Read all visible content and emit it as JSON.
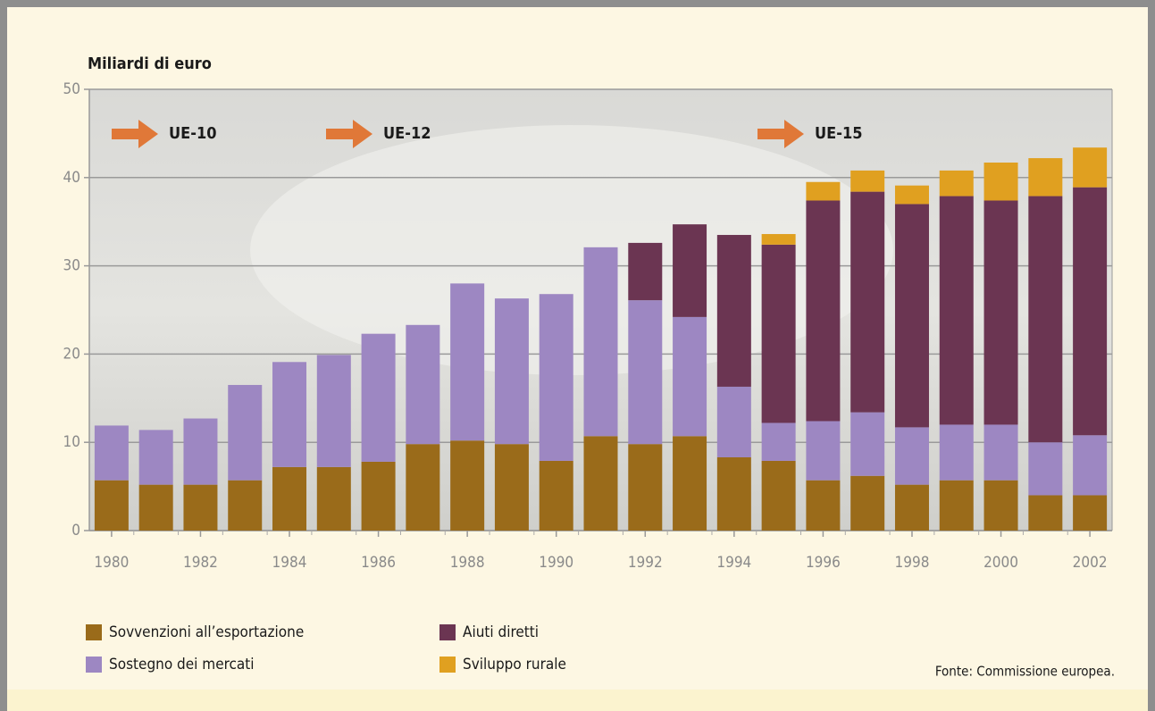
{
  "chart_data": {
    "type": "stacked_bar",
    "y_axis_label": "Miliardi di euro",
    "source": "Fonte: Commissione europea.",
    "annotations": [
      "UE-10",
      "UE-12",
      "UE-15"
    ],
    "x": [
      1980,
      1981,
      1982,
      1983,
      1984,
      1985,
      1986,
      1987,
      1988,
      1989,
      1990,
      1991,
      1992,
      1993,
      1994,
      1995,
      1996,
      1997,
      1998,
      1999,
      2000,
      2001,
      2002
    ],
    "xlim": [
      1979.5,
      2002.5
    ],
    "xticks": [
      1980,
      1982,
      1984,
      1986,
      1988,
      1990,
      1992,
      1994,
      1996,
      1998,
      2000,
      2002
    ],
    "ylim": [
      0,
      50
    ],
    "yticks": [
      0,
      10,
      20,
      30,
      40,
      50
    ],
    "grid": true,
    "series": [
      {
        "name": "Sovvenzioni all’esportazione",
        "color": "#9a6b1a",
        "values": [
          5.7,
          5.2,
          5.2,
          5.7,
          7.2,
          7.2,
          7.8,
          9.8,
          10.2,
          9.8,
          7.9,
          10.7,
          9.8,
          10.7,
          8.3,
          7.9,
          5.7,
          6.2,
          5.2,
          5.7,
          5.7,
          4.0,
          4.0
        ]
      },
      {
        "name": "Sostegno dei mercati",
        "color": "#9d87c2",
        "values": [
          6.2,
          6.2,
          7.5,
          10.8,
          11.9,
          12.7,
          14.5,
          13.5,
          17.8,
          16.5,
          18.9,
          21.4,
          16.3,
          13.5,
          8.0,
          4.3,
          6.7,
          7.2,
          6.5,
          6.3,
          6.3,
          6.0,
          6.8
        ]
      },
      {
        "name": "Aiuti diretti",
        "color": "#6b3552",
        "values": [
          0,
          0,
          0,
          0,
          0,
          0,
          0,
          0,
          0,
          0,
          0,
          0,
          6.5,
          10.5,
          17.2,
          20.2,
          25.0,
          25.0,
          25.3,
          25.9,
          25.4,
          27.9,
          28.1
        ]
      },
      {
        "name": "Sviluppo rurale",
        "color": "#e0a020",
        "values": [
          0,
          0,
          0,
          0,
          0,
          0,
          0,
          0,
          0,
          0,
          0,
          0,
          0,
          0,
          0,
          1.2,
          2.1,
          2.4,
          2.1,
          2.9,
          4.3,
          4.3,
          4.5
        ]
      }
    ]
  }
}
